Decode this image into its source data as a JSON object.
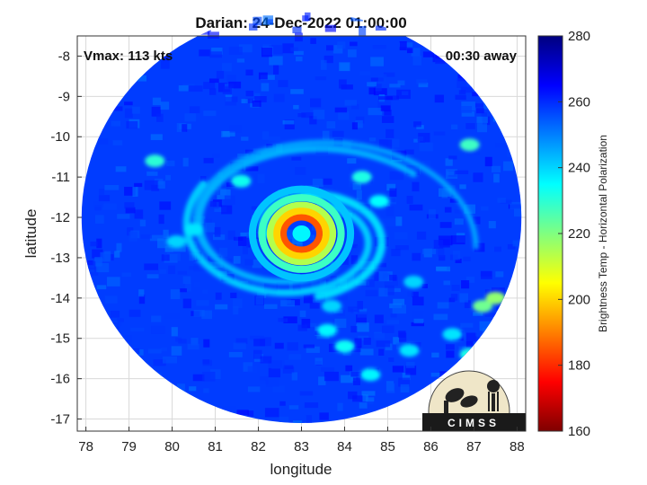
{
  "chart_data": {
    "type": "heatmap",
    "title": "Darian: 24-Dec-2022 01:00:00",
    "xlabel": "longitude",
    "ylabel": "latitude",
    "xlim": [
      77.8,
      88.2
    ],
    "ylim": [
      -17.3,
      -7.5
    ],
    "x_ticks": [
      78,
      79,
      80,
      81,
      82,
      83,
      84,
      85,
      86,
      87,
      88
    ],
    "y_ticks": [
      -8,
      -9,
      -10,
      -11,
      -12,
      -13,
      -14,
      -15,
      -16,
      -17
    ],
    "grid": true,
    "annotations": {
      "top_left": "Vmax: 113 kts",
      "top_right": "00:30 away"
    },
    "colorbar": {
      "label": "Brightness Temp - Horizontal Polarization",
      "min": 160,
      "max": 280,
      "ticks": [
        160,
        180,
        200,
        220,
        240,
        260,
        280
      ],
      "colormap": "jet"
    },
    "storm_center": {
      "lon": 83.0,
      "lat": -12.4
    },
    "swath": {
      "center_lon": 83.0,
      "center_lat": -12.0,
      "radius_deg": 5.1
    },
    "eyewall_temp": 185,
    "background_temp": 258
  },
  "logo": {
    "text": "CIMSS"
  },
  "colors": {
    "jet_dark_blue": "#00007f",
    "jet_blue": "#0000ff",
    "jet_cyan": "#00ffff",
    "jet_yellow": "#ffff00",
    "jet_red": "#ff0000",
    "jet_dark_red": "#7f0000",
    "panel_background": "#ffffff"
  }
}
